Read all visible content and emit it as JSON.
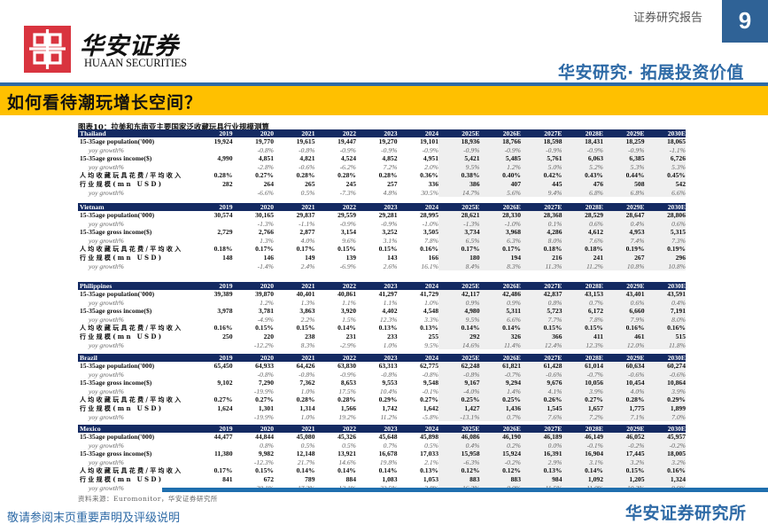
{
  "header": {
    "brand_cn": "华安证券",
    "brand_en": "HUAAN SECURITIES",
    "report_type": "证券研究报告",
    "page_number": "9",
    "slogan": "华安研究· 拓展投资价值",
    "accent_blue": "#2e6aa6",
    "band_yellow": "#ffc000"
  },
  "page_title": "如何看待潮玩增长空间？",
  "figure": {
    "title": "图表10：拉美和东南亚主要国家泛收藏玩具行业规模测算",
    "years": [
      "2019",
      "2020",
      "2021",
      "2022",
      "2023",
      "2024",
      "2025E",
      "2026E",
      "2027E",
      "2028E",
      "2029E",
      "2030E"
    ],
    "estimate_start_index": 6,
    "tables": [
      {
        "country": "Thailand",
        "rows": [
          {
            "label": "15-35age population('000)",
            "type": "bold",
            "values": [
              "19,924",
              "19,770",
              "19,615",
              "19,447",
              "19,270",
              "19,101",
              "18,936",
              "18,766",
              "18,598",
              "18,431",
              "18,259",
              "18,065"
            ]
          },
          {
            "label": "yoy growth%",
            "type": "yoy",
            "values": [
              "",
              "-0.8%",
              "-0.8%",
              "-0.9%",
              "-0.9%",
              "-0.9%",
              "-0.9%",
              "-0.9%",
              "-0.9%",
              "-0.9%",
              "-0.9%",
              "-1.1%"
            ]
          },
          {
            "label": "15-35age gross income($)",
            "type": "bold",
            "values": [
              "4,990",
              "4,851",
              "4,821",
              "4,524",
              "4,852",
              "4,951",
              "5,421",
              "5,485",
              "5,761",
              "6,063",
              "6,385",
              "6,726"
            ]
          },
          {
            "label": "yoy growth%",
            "type": "yoy",
            "values": [
              "",
              "-2.8%",
              "-0.6%",
              "-6.2%",
              "7.2%",
              "2.0%",
              "9.5%",
              "1.2%",
              "5.0%",
              "5.2%",
              "5.3%",
              "5.3%"
            ]
          },
          {
            "label": "人均收藏玩具花费/平均收入",
            "type": "bold cn",
            "values": [
              "0.28%",
              "0.27%",
              "0.28%",
              "0.28%",
              "0.28%",
              "0.36%",
              "0.38%",
              "0.40%",
              "0.42%",
              "0.43%",
              "0.44%",
              "0.45%"
            ]
          },
          {
            "label": "行业规模(mn USD)",
            "type": "bold cn",
            "values": [
              "282",
              "264",
              "265",
              "245",
              "257",
              "336",
              "386",
              "407",
              "445",
              "476",
              "508",
              "542"
            ]
          },
          {
            "label": "yoy growth%",
            "type": "yoy",
            "values": [
              "",
              "-6.6%",
              "0.5%",
              "-7.3%",
              "4.8%",
              "30.5%",
              "14.7%",
              "5.6%",
              "9.4%",
              "6.8%",
              "6.8%",
              "6.6%"
            ]
          }
        ]
      },
      {
        "country": "Vietnam",
        "rows": [
          {
            "label": "15-35age population('000)",
            "type": "bold",
            "values": [
              "30,574",
              "30,165",
              "29,837",
              "29,559",
              "29,281",
              "28,995",
              "28,621",
              "28,330",
              "28,368",
              "28,529",
              "28,647",
              "28,806"
            ]
          },
          {
            "label": "yoy growth%",
            "type": "yoy",
            "values": [
              "",
              "-1.3%",
              "-1.1%",
              "-0.9%",
              "-0.9%",
              "-1.0%",
              "-1.3%",
              "-1.0%",
              "0.1%",
              "0.6%",
              "0.4%",
              "0.6%"
            ]
          },
          {
            "label": "15-35age gross income($)",
            "type": "bold",
            "values": [
              "2,729",
              "2,766",
              "2,877",
              "3,154",
              "3,252",
              "3,505",
              "3,734",
              "3,968",
              "4,286",
              "4,612",
              "4,953",
              "5,315"
            ]
          },
          {
            "label": "yoy growth%",
            "type": "yoy",
            "values": [
              "",
              "1.3%",
              "4.0%",
              "9.6%",
              "3.1%",
              "7.8%",
              "6.5%",
              "6.3%",
              "8.0%",
              "7.6%",
              "7.4%",
              "7.3%"
            ]
          },
          {
            "label": "人均收藏玩具花费/平均收入",
            "type": "bold cn",
            "values": [
              "0.18%",
              "0.17%",
              "0.17%",
              "0.15%",
              "0.15%",
              "0.16%",
              "0.17%",
              "0.17%",
              "0.18%",
              "0.18%",
              "0.19%",
              "0.19%"
            ]
          },
          {
            "label": "行业规模(mn USD)",
            "type": "bold cn",
            "values": [
              "148",
              "146",
              "149",
              "139",
              "143",
              "166",
              "180",
              "194",
              "216",
              "241",
              "267",
              "296"
            ]
          },
          {
            "label": "yoy growth%",
            "type": "yoy",
            "values": [
              "",
              "-1.4%",
              "2.4%",
              "-6.9%",
              "2.6%",
              "16.1%",
              "8.4%",
              "8.3%",
              "11.3%",
              "11.2%",
              "10.8%",
              "10.8%"
            ]
          }
        ]
      },
      {
        "country": "Philippines",
        "rows": [
          {
            "label": "15-35age population('000)",
            "type": "bold",
            "values": [
              "39,389",
              "39,870",
              "40,401",
              "40,861",
              "41,297",
              "41,729",
              "42,117",
              "42,486",
              "42,837",
              "43,153",
              "43,401",
              "43,591"
            ]
          },
          {
            "label": "yoy growth%",
            "type": "yoy",
            "values": [
              "",
              "1.2%",
              "1.3%",
              "1.1%",
              "1.1%",
              "1.0%",
              "0.9%",
              "0.9%",
              "0.8%",
              "0.7%",
              "0.6%",
              "0.4%"
            ]
          },
          {
            "label": "15-35age gross income($)",
            "type": "bold",
            "values": [
              "3,978",
              "3,781",
              "3,863",
              "3,920",
              "4,402",
              "4,548",
              "4,980",
              "5,311",
              "5,723",
              "6,172",
              "6,660",
              "7,191"
            ]
          },
          {
            "label": "yoy growth%",
            "type": "yoy",
            "values": [
              "",
              "-4.9%",
              "2.2%",
              "1.5%",
              "12.3%",
              "3.3%",
              "9.5%",
              "6.6%",
              "7.7%",
              "7.8%",
              "7.9%",
              "8.0%"
            ]
          },
          {
            "label": "人均收藏玩具花费/平均收入",
            "type": "bold cn",
            "values": [
              "0.16%",
              "0.15%",
              "0.15%",
              "0.14%",
              "0.13%",
              "0.13%",
              "0.14%",
              "0.14%",
              "0.15%",
              "0.15%",
              "0.16%",
              "0.16%"
            ]
          },
          {
            "label": "行业规模(mn USD)",
            "type": "bold cn",
            "values": [
              "250",
              "220",
              "238",
              "231",
              "233",
              "255",
              "292",
              "326",
              "366",
              "411",
              "461",
              "515"
            ]
          },
          {
            "label": "yoy growth%",
            "type": "yoy",
            "values": [
              "",
              "-12.2%",
              "8.3%",
              "-2.9%",
              "1.0%",
              "9.5%",
              "14.6%",
              "11.4%",
              "12.4%",
              "12.3%",
              "12.0%",
              "11.8%"
            ]
          }
        ]
      },
      {
        "country": "Brazil",
        "rows": [
          {
            "label": "15-35age population('000)",
            "type": "bold",
            "values": [
              "65,450",
              "64,933",
              "64,426",
              "63,830",
              "63,313",
              "62,775",
              "62,248",
              "61,821",
              "61,428",
              "61,014",
              "60,634",
              "60,274"
            ]
          },
          {
            "label": "yoy growth%",
            "type": "yoy",
            "values": [
              "",
              "-0.8%",
              "-0.8%",
              "-0.9%",
              "-0.8%",
              "-0.8%",
              "-0.8%",
              "-0.7%",
              "-0.6%",
              "-0.7%",
              "-0.6%",
              "-0.6%"
            ]
          },
          {
            "label": "15-35age gross income($)",
            "type": "bold",
            "values": [
              "9,102",
              "7,290",
              "7,362",
              "8,653",
              "9,553",
              "9,548",
              "9,167",
              "9,294",
              "9,676",
              "10,056",
              "10,454",
              "10,864"
            ]
          },
          {
            "label": "yoy growth%",
            "type": "yoy",
            "values": [
              "",
              "-19.9%",
              "1.0%",
              "17.5%",
              "10.4%",
              "-0.1%",
              "-4.0%",
              "1.4%",
              "4.1%",
              "3.9%",
              "4.0%",
              "3.9%"
            ]
          },
          {
            "label": "人均收藏玩具花费/平均收入",
            "type": "bold cn",
            "values": [
              "0.27%",
              "0.27%",
              "0.28%",
              "0.28%",
              "0.29%",
              "0.27%",
              "0.25%",
              "0.25%",
              "0.26%",
              "0.27%",
              "0.28%",
              "0.29%"
            ]
          },
          {
            "label": "行业规模(mn USD)",
            "type": "bold cn",
            "values": [
              "1,624",
              "1,301",
              "1,314",
              "1,566",
              "1,742",
              "1,642",
              "1,427",
              "1,436",
              "1,545",
              "1,657",
              "1,775",
              "1,899"
            ]
          },
          {
            "label": "yoy growth%",
            "type": "yoy",
            "values": [
              "",
              "-19.9%",
              "1.0%",
              "19.2%",
              "11.2%",
              "-5.8%",
              "-13.1%",
              "0.7%",
              "7.6%",
              "7.2%",
              "7.1%",
              "7.0%"
            ]
          }
        ]
      },
      {
        "country": "Mexico",
        "rows": [
          {
            "label": "15-35age population('000)",
            "type": "bold",
            "values": [
              "44,477",
              "44,844",
              "45,080",
              "45,326",
              "45,648",
              "45,898",
              "46,086",
              "46,190",
              "46,189",
              "46,149",
              "46,052",
              "45,957"
            ]
          },
          {
            "label": "yoy growth%",
            "type": "yoy",
            "values": [
              "",
              "0.8%",
              "0.5%",
              "0.5%",
              "0.7%",
              "0.5%",
              "0.4%",
              "0.2%",
              "0.0%",
              "-0.1%",
              "-0.2%",
              "-0.2%"
            ]
          },
          {
            "label": "15-35age gross income($)",
            "type": "bold",
            "values": [
              "11,380",
              "9,982",
              "12,148",
              "13,921",
              "16,678",
              "17,033",
              "15,958",
              "15,924",
              "16,391",
              "16,904",
              "17,445",
              "18,005"
            ]
          },
          {
            "label": "yoy growth%",
            "type": "yoy",
            "values": [
              "",
              "-12.3%",
              "21.7%",
              "14.6%",
              "19.8%",
              "2.1%",
              "-6.3%",
              "-0.2%",
              "2.9%",
              "3.1%",
              "3.2%",
              "3.2%"
            ]
          },
          {
            "label": "人均收藏玩具花费/平均收入",
            "type": "bold cn",
            "values": [
              "0.17%",
              "0.15%",
              "0.14%",
              "0.14%",
              "0.14%",
              "0.13%",
              "0.12%",
              "0.12%",
              "0.13%",
              "0.14%",
              "0.15%",
              "0.16%"
            ]
          },
          {
            "label": "行业规模(mn USD)",
            "type": "bold cn",
            "values": [
              "841",
              "672",
              "789",
              "884",
              "1,083",
              "1,053",
              "883",
              "883",
              "984",
              "1,092",
              "1,205",
              "1,324"
            ]
          },
          {
            "label": "yoy growth%",
            "type": "yoy",
            "values": [
              "",
              "-20.1%",
              "17.3%",
              "12.1%",
              "22.5%",
              "-2.8%",
              "-16.2%",
              "0.0%",
              "11.5%",
              "11.0%",
              "10.3%",
              "9.9%"
            ]
          }
        ]
      }
    ],
    "source": "资料来源：Euromonitor，华安证券研究所"
  },
  "footer": {
    "disclaimer": "敬请参阅末页重要声明及评级说明",
    "brand": "华安证券研究所"
  }
}
